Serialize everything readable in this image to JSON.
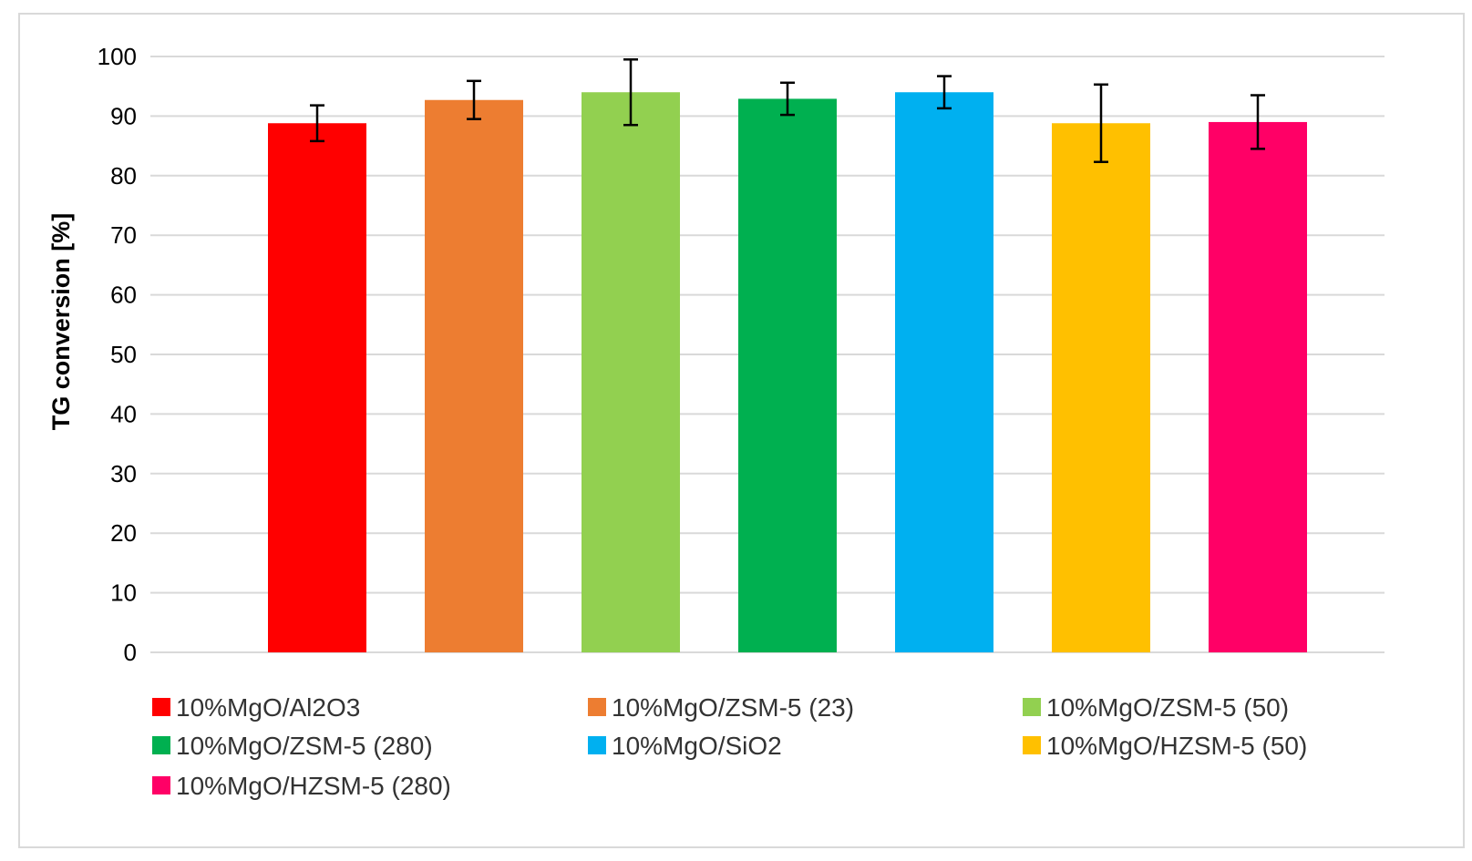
{
  "chart_data": {
    "type": "bar",
    "title": "",
    "xlabel": "",
    "ylabel": "TG conversion [%]",
    "ylim": [
      0,
      100
    ],
    "yticks": [
      0,
      10,
      20,
      30,
      40,
      50,
      60,
      70,
      80,
      90,
      100
    ],
    "grid": true,
    "legend_position": "bottom",
    "categories": [
      "10%MgO/Al2O3",
      "10%MgO/ZSM-5 (23)",
      "10%MgO/ZSM-5 (50)",
      "10%MgO/ZSM-5 (280)",
      "10%MgO/SiO2",
      "10%MgO/HZSM-5 (50)",
      "10%MgO/HZSM-5 (280)"
    ],
    "values": [
      88.8,
      92.7,
      94.0,
      92.9,
      94.0,
      88.8,
      89.0
    ],
    "errors": [
      3.0,
      3.2,
      5.5,
      2.7,
      2.7,
      6.5,
      4.5
    ],
    "colors": [
      "#ff0000",
      "#ed7d31",
      "#92d050",
      "#00b050",
      "#00b0f0",
      "#ffc000",
      "#ff0066"
    ]
  }
}
